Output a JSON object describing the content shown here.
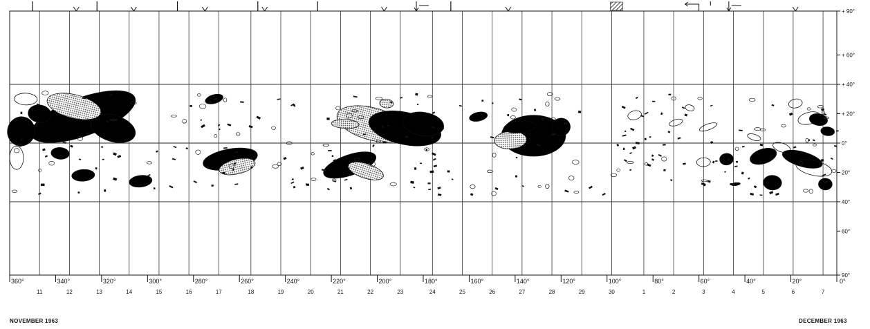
{
  "chart_data": {
    "type": "synoptic-map",
    "x_unit": "Carrington longitude (deg)",
    "x_range": [
      360,
      0
    ],
    "y_range": [
      -90,
      90
    ],
    "longitude_ticks": [
      {
        "lon": 360,
        "label": "360°"
      },
      {
        "lon": 340,
        "label": "340°"
      },
      {
        "lon": 320,
        "label": "320°"
      },
      {
        "lon": 300,
        "label": "300°"
      },
      {
        "lon": 280,
        "label": "280°"
      },
      {
        "lon": 260,
        "label": "260°"
      },
      {
        "lon": 240,
        "label": "240°"
      },
      {
        "lon": 220,
        "label": "220°"
      },
      {
        "lon": 200,
        "label": "200°"
      },
      {
        "lon": 180,
        "label": "180°"
      },
      {
        "lon": 160,
        "label": "160°"
      },
      {
        "lon": 140,
        "label": "140°"
      },
      {
        "lon": 120,
        "label": "120°"
      },
      {
        "lon": 100,
        "label": "100°"
      },
      {
        "lon": 80,
        "label": "80°"
      },
      {
        "lon": 60,
        "label": "60°"
      },
      {
        "lon": 40,
        "label": "40°"
      },
      {
        "lon": 20,
        "label": "20°"
      },
      {
        "lon": 0,
        "label": "0°"
      }
    ],
    "latitude_ticks": [
      {
        "lat": 90,
        "label": "+ 90°"
      },
      {
        "lat": 60,
        "label": "+ 60°"
      },
      {
        "lat": 40,
        "label": "+ 40°"
      },
      {
        "lat": 20,
        "label": "+ 20°"
      },
      {
        "lat": 0,
        "label": "0°"
      },
      {
        "lat": -20,
        "label": "20°"
      },
      {
        "lat": -40,
        "label": "40°"
      },
      {
        "lat": -60,
        "label": "60°"
      },
      {
        "lat": -90,
        "label": "90°"
      }
    ],
    "days": [
      {
        "lon": 347,
        "label": "11"
      },
      {
        "lon": 334,
        "label": "12"
      },
      {
        "lon": 321,
        "label": "13"
      },
      {
        "lon": 308,
        "label": "14"
      },
      {
        "lon": 295,
        "label": "15"
      },
      {
        "lon": 282,
        "label": "16"
      },
      {
        "lon": 269,
        "label": "17"
      },
      {
        "lon": 255,
        "label": "18"
      },
      {
        "lon": 242,
        "label": "19"
      },
      {
        "lon": 229,
        "label": "20"
      },
      {
        "lon": 216,
        "label": "21"
      },
      {
        "lon": 203,
        "label": "22"
      },
      {
        "lon": 190,
        "label": "23"
      },
      {
        "lon": 176,
        "label": "24"
      },
      {
        "lon": 163,
        "label": "25"
      },
      {
        "lon": 150,
        "label": "26"
      },
      {
        "lon": 137,
        "label": "27"
      },
      {
        "lon": 124,
        "label": "28"
      },
      {
        "lon": 111,
        "label": "29"
      },
      {
        "lon": 98,
        "label": "30"
      },
      {
        "lon": 84,
        "label": "1"
      },
      {
        "lon": 71,
        "label": "2"
      },
      {
        "lon": 58,
        "label": "3"
      },
      {
        "lon": 45,
        "label": "4"
      },
      {
        "lon": 32,
        "label": "5"
      },
      {
        "lon": 19,
        "label": "6"
      },
      {
        "lon": 6,
        "label": "7"
      }
    ],
    "top_ticks": [
      {
        "lon": 350,
        "kind": "bar"
      },
      {
        "lon": 331,
        "kind": "v"
      },
      {
        "lon": 322,
        "kind": "bar"
      },
      {
        "lon": 306,
        "kind": "v"
      },
      {
        "lon": 287,
        "kind": "bar"
      },
      {
        "lon": 275,
        "kind": "v"
      },
      {
        "lon": 252,
        "kind": "bar"
      },
      {
        "lon": 249,
        "kind": "v"
      },
      {
        "lon": 226,
        "kind": "bar"
      },
      {
        "lon": 197,
        "kind": "v"
      },
      {
        "lon": 183,
        "kind": "down-arrow"
      },
      {
        "lon": 168,
        "kind": "bar"
      },
      {
        "lon": 143,
        "kind": "v"
      },
      {
        "lon": 98,
        "kind": "hatch"
      },
      {
        "lon": 60,
        "kind": "left-arrow"
      },
      {
        "lon": 55,
        "kind": "dash"
      },
      {
        "lon": 47,
        "kind": "down-arrow"
      },
      {
        "lon": 18,
        "kind": "v"
      }
    ],
    "months": {
      "left": "NOVEMBER 1963",
      "right": "DECEMBER 1963"
    },
    "region_types": {
      "solid": "#000000",
      "stipple": "#8c8c8c",
      "outline": "none"
    },
    "regions": [
      {
        "lon": 328,
        "lat": 18,
        "rx": 24,
        "ry": 13,
        "type": "solid"
      },
      {
        "lon": 315,
        "lat": 10,
        "rx": 10,
        "ry": 9,
        "type": "solid"
      },
      {
        "lon": 332,
        "lat": 25,
        "rx": 12,
        "ry": 8,
        "type": "stipple"
      },
      {
        "lon": 355,
        "lat": 8,
        "rx": 6,
        "ry": 10,
        "type": "solid"
      },
      {
        "lon": 347,
        "lat": 20,
        "rx": 5,
        "ry": 6,
        "type": "solid"
      },
      {
        "lon": 338,
        "lat": -7,
        "rx": 4,
        "ry": 4,
        "type": "solid"
      },
      {
        "lon": 353,
        "lat": 30,
        "rx": 5,
        "ry": 4,
        "type": "outline"
      },
      {
        "lon": 357,
        "lat": -10,
        "rx": 3,
        "ry": 8,
        "type": "outline"
      },
      {
        "lon": 328,
        "lat": -22,
        "rx": 5,
        "ry": 4,
        "type": "solid"
      },
      {
        "lon": 303,
        "lat": -26,
        "rx": 5,
        "ry": 4,
        "type": "solid"
      },
      {
        "lon": 264,
        "lat": -11,
        "rx": 12,
        "ry": 7,
        "type": "solid"
      },
      {
        "lon": 261,
        "lat": -16,
        "rx": 8,
        "ry": 5,
        "type": "stipple"
      },
      {
        "lon": 271,
        "lat": 30,
        "rx": 4,
        "ry": 3,
        "type": "solid"
      },
      {
        "lon": 212,
        "lat": -15,
        "rx": 12,
        "ry": 7,
        "type": "solid"
      },
      {
        "lon": 205,
        "lat": -19,
        "rx": 8,
        "ry": 5,
        "type": "stipple"
      },
      {
        "lon": 202,
        "lat": 13,
        "rx": 16,
        "ry": 11,
        "type": "stipple"
      },
      {
        "lon": 188,
        "lat": 10,
        "rx": 16,
        "ry": 11,
        "type": "solid"
      },
      {
        "lon": 180,
        "lat": 13,
        "rx": 9,
        "ry": 8,
        "type": "solid"
      },
      {
        "lon": 196,
        "lat": 27,
        "rx": 3,
        "ry": 3,
        "type": "stipple"
      },
      {
        "lon": 214,
        "lat": 13,
        "rx": 6,
        "ry": 3,
        "type": "stipple"
      },
      {
        "lon": 132,
        "lat": 5,
        "rx": 14,
        "ry": 14,
        "type": "solid"
      },
      {
        "lon": 142,
        "lat": 2,
        "rx": 7,
        "ry": 6,
        "type": "stipple"
      },
      {
        "lon": 138,
        "lat": 11,
        "rx": 7,
        "ry": 4,
        "type": "solid"
      },
      {
        "lon": 120,
        "lat": 11,
        "rx": 4,
        "ry": 6,
        "type": "solid"
      },
      {
        "lon": 156,
        "lat": 18,
        "rx": 4,
        "ry": 3,
        "type": "solid"
      },
      {
        "lon": 12,
        "lat": 17,
        "rx": 5,
        "ry": 4,
        "type": "outline"
      },
      {
        "lon": 32,
        "lat": -9,
        "rx": 6,
        "ry": 5,
        "type": "solid"
      },
      {
        "lon": 24,
        "lat": -3,
        "rx": 4,
        "ry": 3,
        "type": "outline"
      },
      {
        "lon": 15,
        "lat": -11,
        "rx": 9,
        "ry": 5,
        "type": "solid"
      },
      {
        "lon": 10,
        "lat": -17,
        "rx": 8,
        "ry": 5,
        "type": "outline"
      },
      {
        "lon": 8,
        "lat": 16,
        "rx": 4,
        "ry": 4,
        "type": "solid"
      },
      {
        "lon": 4,
        "lat": 8,
        "rx": 3,
        "ry": 3,
        "type": "solid"
      },
      {
        "lon": 28,
        "lat": -27,
        "rx": 4,
        "ry": 5,
        "type": "solid"
      },
      {
        "lon": 5,
        "lat": -28,
        "rx": 3,
        "ry": 4,
        "type": "solid"
      },
      {
        "lon": 58,
        "lat": -13,
        "rx": 3,
        "ry": 3,
        "type": "outline"
      },
      {
        "lon": 48,
        "lat": -11,
        "rx": 3,
        "ry": 4,
        "type": "solid"
      },
      {
        "lon": 44,
        "lat": -28,
        "rx": 2,
        "ry": 1,
        "type": "solid"
      },
      {
        "lon": 18,
        "lat": 27,
        "rx": 3,
        "ry": 3,
        "type": "outline"
      },
      {
        "lon": 88,
        "lat": 19,
        "rx": 3,
        "ry": 3,
        "type": "outline"
      },
      {
        "lon": 70,
        "lat": 14,
        "rx": 3,
        "ry": 2,
        "type": "outline"
      },
      {
        "lon": 56,
        "lat": 11,
        "rx": 4,
        "ry": 2,
        "type": "outline"
      },
      {
        "lon": 36,
        "lat": 4,
        "rx": 3,
        "ry": 2,
        "type": "outline"
      },
      {
        "lon": 64,
        "lat": 24,
        "rx": 2,
        "ry": 2,
        "type": "outline"
      }
    ]
  }
}
